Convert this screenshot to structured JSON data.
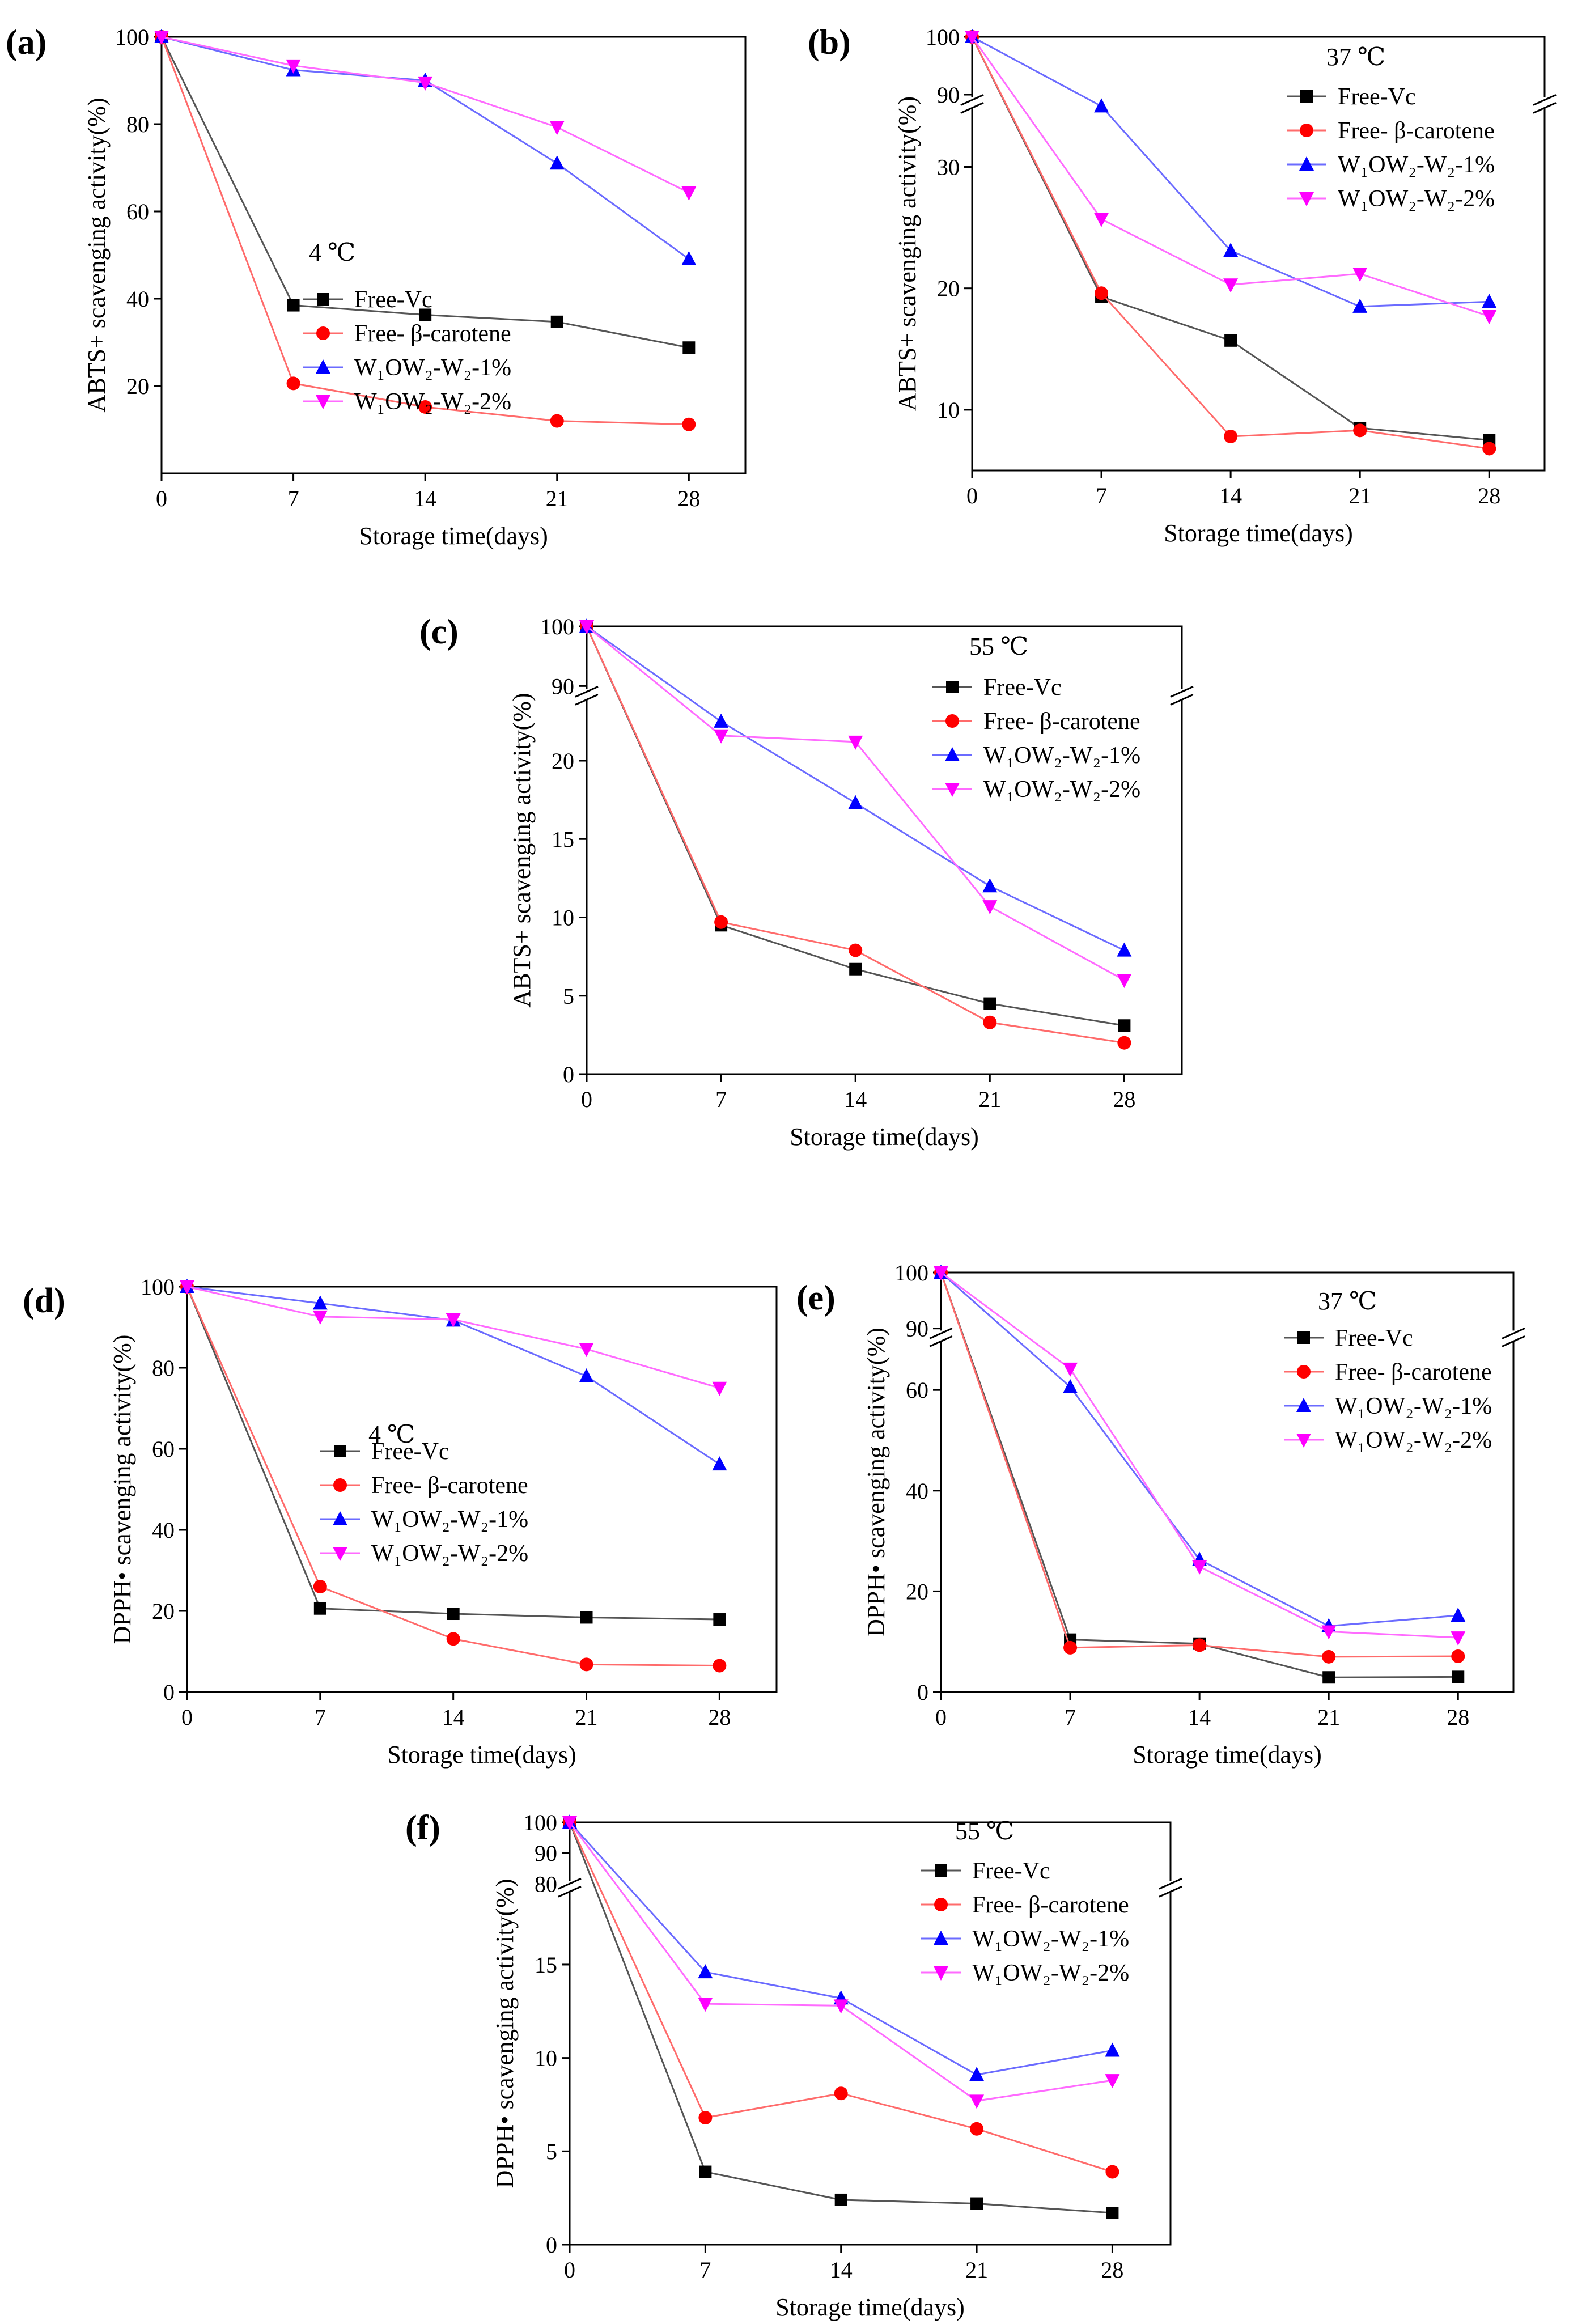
{
  "colors": {
    "free_vc": "#000000",
    "free_carotene": "#ff0000",
    "w_1": "#0000ff",
    "w_2": "#ff00ff",
    "free_vc_line": "#555555",
    "free_carotene_line": "#ff6b6b",
    "w_1_line": "#6b6bff",
    "w_2_line": "#ff6bff"
  },
  "legend_labels": {
    "free_vc": "Free-Vc",
    "free_carotene": "Free- β-carotene",
    "w_1": "W₁OW₂-W₂-1%",
    "w_2": "W₁OW₂-W₂-2%"
  },
  "chart_data": [
    {
      "id": "a",
      "panel_label": "(a)",
      "type": "line",
      "temperature": "4 ℃",
      "xlabel": "Storage time(days)",
      "ylabel": "ABTS+ scavenging activity(%)",
      "x": [
        0,
        7,
        14,
        21,
        28
      ],
      "x_ticks": [
        0,
        7,
        14,
        21,
        28
      ],
      "xlim": [
        0,
        31
      ],
      "ylim": [
        0,
        100
      ],
      "y_ticks": [
        20,
        40,
        60,
        80,
        100
      ],
      "series": [
        {
          "key": "free_vc",
          "marker": "square",
          "values": [
            100,
            38.5,
            36.3,
            34.7,
            28.8
          ]
        },
        {
          "key": "free_carotene",
          "marker": "circle",
          "values": [
            100,
            20.6,
            15.2,
            12.0,
            11.2
          ]
        },
        {
          "key": "w_1",
          "marker": "triangle-up",
          "values": [
            100,
            92.4,
            90.0,
            71.0,
            49.1
          ]
        },
        {
          "key": "w_2",
          "marker": "triangle-down",
          "values": [
            100,
            93.4,
            89.5,
            79.3,
            64.3
          ]
        }
      ]
    },
    {
      "id": "b",
      "panel_label": "(b)",
      "type": "line",
      "temperature": "37 ℃",
      "xlabel": "Storage time(days)",
      "ylabel": "ABTS+ scavenging activity(%)",
      "x": [
        0,
        7,
        14,
        21,
        28
      ],
      "x_ticks": [
        0,
        7,
        14,
        21,
        28
      ],
      "xlim": [
        0,
        31
      ],
      "ylim": [
        5,
        100
      ],
      "y_break": [
        35,
        88
      ],
      "y_ticks": [
        10,
        20,
        30,
        90,
        100
      ],
      "series": [
        {
          "key": "free_vc",
          "marker": "square",
          "values": [
            100,
            19.3,
            15.7,
            8.5,
            7.5
          ]
        },
        {
          "key": "free_carotene",
          "marker": "circle",
          "values": [
            100,
            19.6,
            7.8,
            8.3,
            6.8
          ]
        },
        {
          "key": "w_1",
          "marker": "triangle-up",
          "values": [
            100,
            37.8,
            23.1,
            18.5,
            18.9
          ]
        },
        {
          "key": "w_2",
          "marker": "triangle-down",
          "values": [
            100,
            25.7,
            20.3,
            21.2,
            17.7
          ]
        }
      ]
    },
    {
      "id": "c",
      "panel_label": "(c)",
      "type": "line",
      "temperature": "55 ℃",
      "xlabel": "Storage time(days)",
      "ylabel": "ABTS+ scavenging activity(%)",
      "x": [
        0,
        7,
        14,
        21,
        28
      ],
      "x_ticks": [
        0,
        7,
        14,
        21,
        28
      ],
      "xlim": [
        0,
        31
      ],
      "ylim": [
        0,
        100
      ],
      "y_break": [
        24,
        88
      ],
      "y_ticks": [
        0,
        5,
        10,
        15,
        20,
        90,
        100
      ],
      "series": [
        {
          "key": "free_vc",
          "marker": "square",
          "values": [
            100,
            9.5,
            6.7,
            4.5,
            3.1
          ]
        },
        {
          "key": "free_carotene",
          "marker": "circle",
          "values": [
            100,
            9.7,
            7.9,
            3.3,
            2.0
          ]
        },
        {
          "key": "w_1",
          "marker": "triangle-up",
          "values": [
            100,
            22.5,
            17.3,
            12.0,
            7.9
          ]
        },
        {
          "key": "w_2",
          "marker": "triangle-down",
          "values": [
            100,
            21.6,
            21.2,
            10.7,
            6.0
          ]
        }
      ]
    },
    {
      "id": "d",
      "panel_label": "(d)",
      "type": "line",
      "temperature": "4 ℃",
      "xlabel": "Storage time(days)",
      "ylabel": "DPPH• scavenging activity(%)",
      "x": [
        0,
        7,
        14,
        21,
        28
      ],
      "x_ticks": [
        0,
        7,
        14,
        21,
        28
      ],
      "xlim": [
        0,
        31
      ],
      "ylim": [
        0,
        100
      ],
      "y_ticks": [
        0,
        20,
        40,
        60,
        80,
        100
      ],
      "series": [
        {
          "key": "free_vc",
          "marker": "square",
          "values": [
            100,
            20.6,
            19.3,
            18.4,
            17.9
          ]
        },
        {
          "key": "free_carotene",
          "marker": "circle",
          "values": [
            100,
            26.0,
            13.1,
            6.8,
            6.5
          ]
        },
        {
          "key": "w_1",
          "marker": "triangle-up",
          "values": [
            100,
            95.9,
            91.7,
            77.9,
            56.2
          ]
        },
        {
          "key": "w_2",
          "marker": "triangle-down",
          "values": [
            100,
            92.6,
            91.9,
            84.6,
            75.0
          ]
        }
      ]
    },
    {
      "id": "e",
      "panel_label": "(e)",
      "type": "line",
      "temperature": "37 ℃",
      "xlabel": "Storage time(days)",
      "ylabel": "DPPH• scavenging activity(%)",
      "x": [
        0,
        7,
        14,
        21,
        28
      ],
      "x_ticks": [
        0,
        7,
        14,
        21,
        28
      ],
      "xlim": [
        0,
        31
      ],
      "ylim": [
        0,
        100
      ],
      "y_break": [
        70,
        88
      ],
      "y_ticks": [
        0,
        20,
        40,
        60,
        90,
        100
      ],
      "series": [
        {
          "key": "free_vc",
          "marker": "square",
          "values": [
            100,
            10.4,
            9.6,
            2.9,
            3.0
          ]
        },
        {
          "key": "free_carotene",
          "marker": "circle",
          "values": [
            100,
            8.8,
            9.3,
            7.0,
            7.1
          ]
        },
        {
          "key": "w_1",
          "marker": "triangle-up",
          "values": [
            100,
            60.6,
            26.3,
            13.1,
            15.2
          ]
        },
        {
          "key": "w_2",
          "marker": "triangle-down",
          "values": [
            100,
            64.2,
            24.9,
            12.0,
            10.8
          ]
        }
      ]
    },
    {
      "id": "f",
      "panel_label": "(f)",
      "type": "line",
      "temperature": "55 ℃",
      "xlabel": "Storage time(days)",
      "ylabel": "DPPH• scavenging activity(%)",
      "x": [
        0,
        7,
        14,
        21,
        28
      ],
      "x_ticks": [
        0,
        7,
        14,
        21,
        28
      ],
      "xlim": [
        0,
        31
      ],
      "ylim": [
        0,
        100
      ],
      "y_break": [
        19,
        78
      ],
      "y_ticks": [
        0,
        5,
        10,
        15,
        80,
        90,
        100
      ],
      "series": [
        {
          "key": "free_vc",
          "marker": "square",
          "values": [
            100,
            3.9,
            2.4,
            2.2,
            1.7
          ]
        },
        {
          "key": "free_carotene",
          "marker": "circle",
          "values": [
            100,
            6.8,
            8.1,
            6.2,
            3.9
          ]
        },
        {
          "key": "w_1",
          "marker": "triangle-up",
          "values": [
            100,
            14.6,
            13.2,
            9.1,
            10.4
          ]
        },
        {
          "key": "w_2",
          "marker": "triangle-down",
          "values": [
            100,
            12.9,
            12.8,
            7.7,
            8.8
          ]
        }
      ]
    }
  ]
}
